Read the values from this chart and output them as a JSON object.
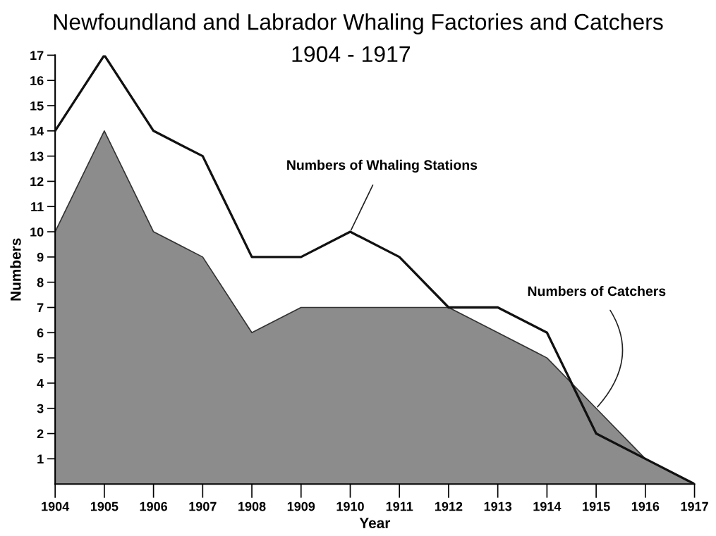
{
  "chart_data": {
    "type": "area",
    "title": "Newfoundland and Labrador Whaling Factories and Catchers",
    "subtitle": "1904 - 1917",
    "xlabel": "Year",
    "ylabel": "Numbers",
    "x": [
      1904,
      1905,
      1906,
      1907,
      1908,
      1909,
      1910,
      1911,
      1912,
      1913,
      1914,
      1915,
      1916,
      1917
    ],
    "series": [
      {
        "color": "#8c8c8c",
        "values": [
          10,
          14,
          10,
          9,
          6,
          7,
          7,
          7,
          7,
          6,
          5,
          3,
          1,
          0
        ]
      },
      {
        "type": "line",
        "color": "#111111",
        "values": [
          14,
          17,
          14,
          13,
          9,
          9,
          10,
          9,
          7,
          7,
          6,
          2,
          1,
          0
        ]
      }
    ],
    "annotations": [
      {
        "text": "Numbers of Whaling Stations",
        "x": 1910,
        "y": 10
      },
      {
        "text": "Numbers of Catchers",
        "x": 1915,
        "y": 3
      }
    ],
    "xlim": [
      1904,
      1917
    ],
    "xticks": [
      1904,
      1905,
      1906,
      1907,
      1908,
      1909,
      1910,
      1911,
      1912,
      1913,
      1914,
      1915,
      1916,
      1917
    ],
    "ylim": [
      0,
      17
    ],
    "yticks": [
      1,
      2,
      3,
      4,
      5,
      6,
      7,
      8,
      9,
      10,
      11,
      12,
      13,
      14,
      15,
      16,
      17
    ],
    "grid": false,
    "legend": false,
    "marker": "none",
    "line_style": "solid"
  }
}
